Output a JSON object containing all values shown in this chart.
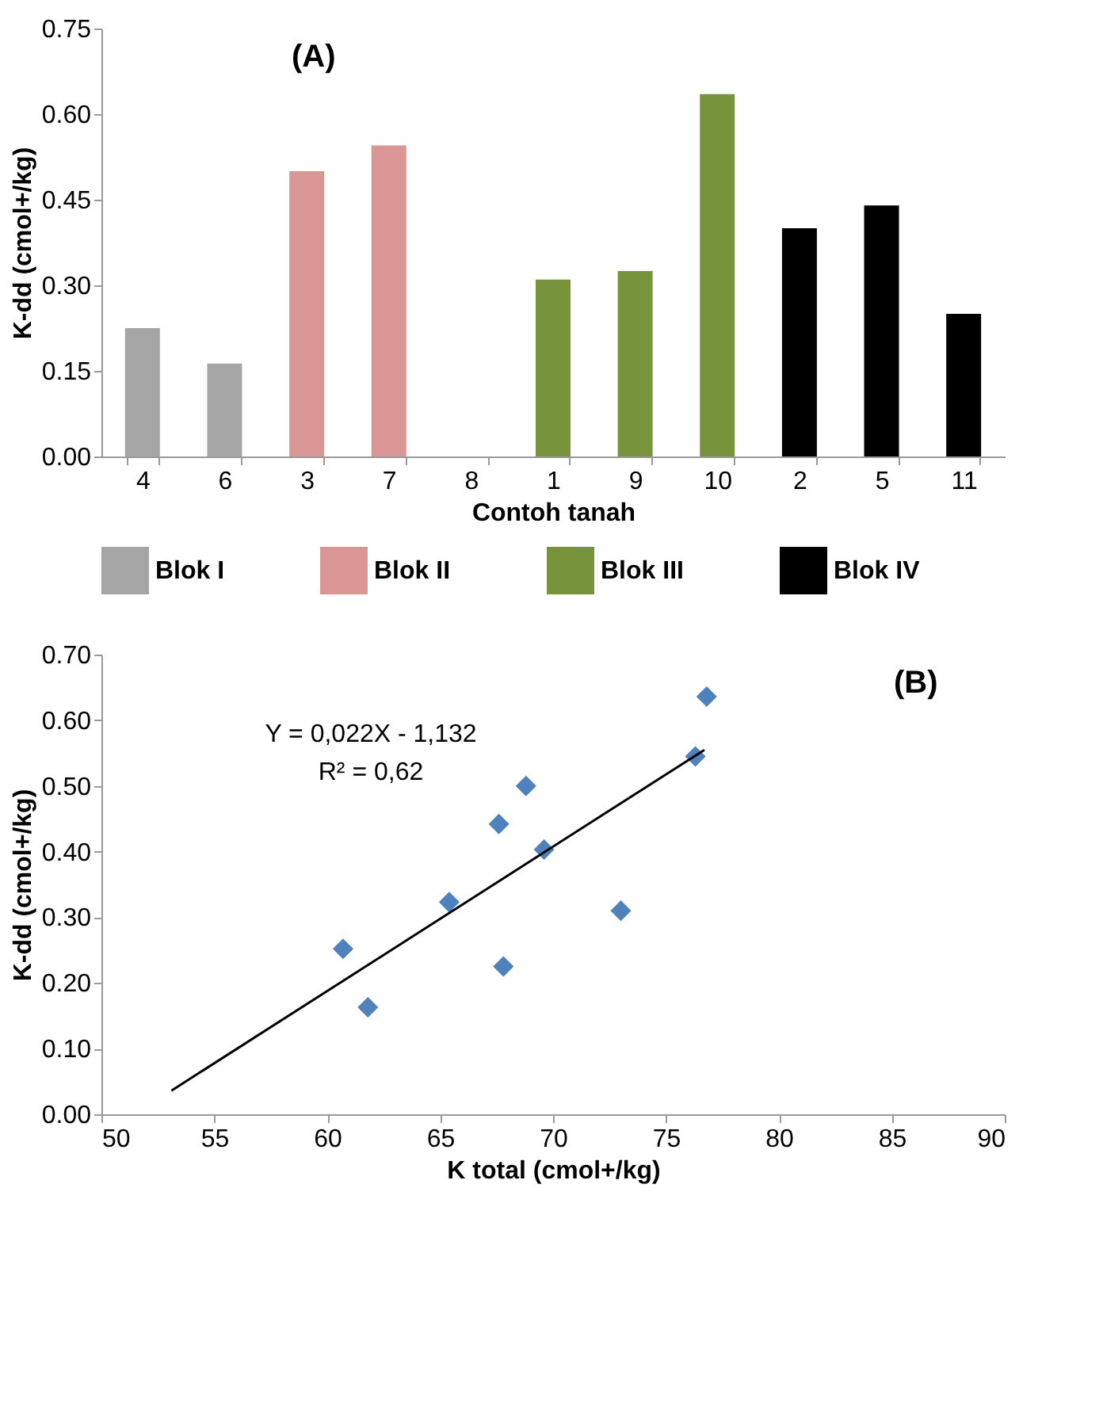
{
  "chart_data": [
    {
      "type": "bar",
      "title": "(A)",
      "xlabel": "Contoh tanah",
      "ylabel": "K-dd (cmol+/kg)",
      "categories": [
        "4",
        "6",
        "3",
        "7",
        "8",
        "1",
        "9",
        "10",
        "2",
        "5",
        "11"
      ],
      "series": [
        {
          "name": "Blok I",
          "color": "#a5a5a5",
          "values": [
            0.225,
            0.163,
            null,
            null,
            null,
            null,
            null,
            null,
            null,
            null,
            null
          ]
        },
        {
          "name": "Blok II",
          "color": "#d99694",
          "values": [
            null,
            null,
            0.5,
            0.545,
            null,
            null,
            null,
            null,
            null,
            null,
            null
          ]
        },
        {
          "name": "Blok III",
          "color": "#77933c",
          "values": [
            null,
            null,
            null,
            null,
            null,
            0.31,
            0.325,
            0.635,
            null,
            null,
            null
          ]
        },
        {
          "name": "Blok IV",
          "color": "#000000",
          "values": [
            null,
            null,
            null,
            null,
            null,
            null,
            null,
            null,
            0.4,
            0.44,
            0.25
          ]
        }
      ],
      "ylim": [
        0,
        0.75
      ],
      "yticks": [
        {
          "value": 0,
          "label": "0.00"
        },
        {
          "value": 0.15,
          "label": "0.15"
        },
        {
          "value": 0.3,
          "label": "0.30"
        },
        {
          "value": 0.45,
          "label": "0.45"
        },
        {
          "value": 0.6,
          "label": "0.60"
        },
        {
          "value": 0.75,
          "label": "0.75"
        }
      ],
      "grid": false,
      "legend": "bottom"
    },
    {
      "type": "scatter",
      "title": "(B)",
      "xlabel": "K total (cmol+/kg)",
      "ylabel": "K-dd (cmol+/kg)",
      "series": [
        {
          "color": "#4f81bd",
          "marker": "diamond",
          "x": [
            60.7,
            61.8,
            65.4,
            67.6,
            67.8,
            68.8,
            69.6,
            73.0,
            76.3,
            76.8
          ],
          "values": [
            0.252,
            0.163,
            0.323,
            0.442,
            0.225,
            0.5,
            0.403,
            0.31,
            0.545,
            0.636
          ]
        },
        {
          "type": "line",
          "color": "#000000",
          "marker": "none",
          "x": [
            53.1,
            76.7
          ],
          "values": [
            0.036,
            0.555
          ]
        }
      ],
      "annotations": [
        "Y = 0,022X - 1,132",
        "R² = 0,62"
      ],
      "xlim": [
        50,
        90
      ],
      "xticks": [
        50,
        55,
        60,
        65,
        70,
        75,
        80,
        85,
        90
      ],
      "ylim": [
        0,
        0.7
      ],
      "yticks": [
        {
          "value": 0,
          "label": "0.00"
        },
        {
          "value": 0.1,
          "label": "0.10"
        },
        {
          "value": 0.2,
          "label": "0.20"
        },
        {
          "value": 0.3,
          "label": "0.30"
        },
        {
          "value": 0.4,
          "label": "0.40"
        },
        {
          "value": 0.5,
          "label": "0.50"
        },
        {
          "value": 0.6,
          "label": "0.60"
        },
        {
          "value": 0.7,
          "label": "0.70"
        }
      ],
      "grid": false
    }
  ]
}
